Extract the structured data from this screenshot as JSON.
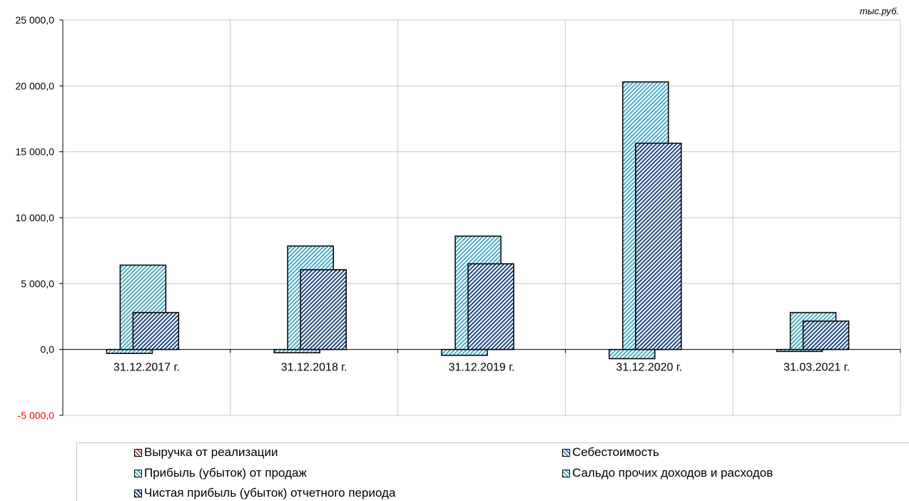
{
  "unit": "тыс.руб.",
  "chart_data": {
    "type": "bar",
    "categories": [
      "31.12.2017 г.",
      "31.12.2018 г.",
      "31.12.2019 г.",
      "31.12.2020 г.",
      "31.03.2021 г."
    ],
    "y_ticks": [
      "-5 000,0",
      "0,0",
      "5 000,0",
      "10 000,0",
      "15 000,0",
      "20 000,0",
      "25 000,0"
    ],
    "ylim": [
      -5000,
      25000
    ],
    "grid": true,
    "legend_position": "bottom",
    "series": [
      {
        "name": "Выручка от реализации",
        "values": [
          null,
          null,
          null,
          null,
          null
        ],
        "color": "#c0504d"
      },
      {
        "name": "Себестоимость",
        "values": [
          null,
          null,
          null,
          null,
          null
        ],
        "color": "#4f81bd"
      },
      {
        "name": "Сальдо прочих доходов и расходов",
        "values": [
          -300,
          -250,
          -450,
          -700,
          -150
        ],
        "color": "#4bacc6"
      },
      {
        "name": "Прибыль (убыток) от продаж",
        "values": [
          6400,
          7850,
          8600,
          20300,
          2800
        ],
        "color": "#4bacc6"
      },
      {
        "name": "Чистая прибыль (убыток) отчетного периода",
        "values": [
          2800,
          6050,
          6500,
          15650,
          2150
        ],
        "color": "#1f497d"
      }
    ]
  },
  "legend": [
    {
      "label": "Выручка от реализации",
      "color": "#c0504d"
    },
    {
      "label": "Себестоимость",
      "color": "#4f81bd"
    },
    {
      "label": "Прибыль (убыток) от продаж",
      "color": "#4bacc6"
    },
    {
      "label": "Сальдо прочих доходов и расходов",
      "color": "#4bacc6"
    },
    {
      "label": "Чистая прибыль (убыток) отчетного периода",
      "color": "#1f497d"
    }
  ]
}
